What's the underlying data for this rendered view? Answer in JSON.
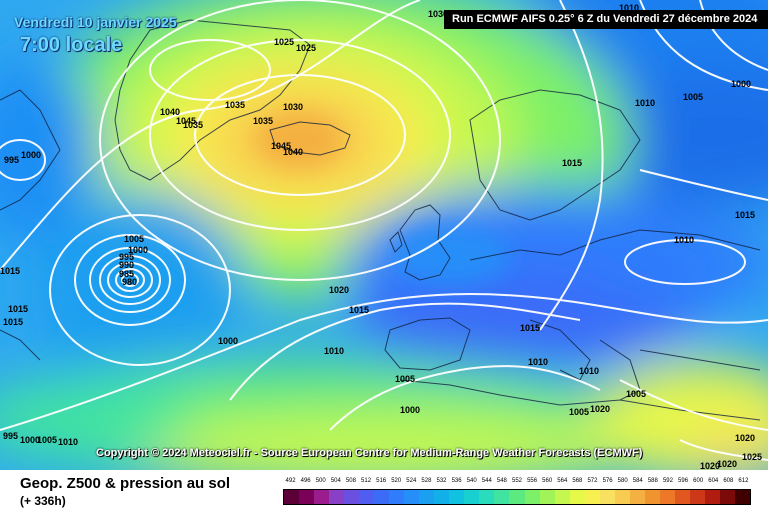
{
  "header": {
    "date": "Vendredi 10 janvier 2025",
    "local_time": "7:00 locale",
    "run_info": "Run ECMWF AIFS 0.25° 6 Z du Vendredi 27 décembre 2024"
  },
  "copyright": "Copyright © 2024 Meteociel.fr - Source European Centre for Medium-Range Weather Forecasts (ECMWF)",
  "footer": {
    "title": "Geop. Z500 & pression au sol",
    "forecast_hour": "(+ 336h)"
  },
  "legend": {
    "levels": [
      "492",
      "496",
      "500",
      "504",
      "508",
      "512",
      "516",
      "520",
      "524",
      "528",
      "532",
      "536",
      "540",
      "544",
      "548",
      "552",
      "556",
      "560",
      "564",
      "568",
      "572",
      "576",
      "580",
      "584",
      "588",
      "592",
      "596",
      "600",
      "604",
      "608",
      "612"
    ],
    "colors": [
      "#5c0038",
      "#7a0058",
      "#9b1c8c",
      "#8a3fc7",
      "#6a50e0",
      "#4f5ef0",
      "#3a6cf8",
      "#2f7dfc",
      "#258ef8",
      "#1b9ff0",
      "#12b0e8",
      "#10c2e0",
      "#18d0d0",
      "#28dcbc",
      "#40e4a0",
      "#5cea80",
      "#7cf068",
      "#a0f458",
      "#c4f850",
      "#e6f848",
      "#f8f050",
      "#f8e060",
      "#f8cc50",
      "#f4b040",
      "#f09430",
      "#ec7828",
      "#e05820",
      "#cc3818",
      "#b01c10",
      "#7c0a08",
      "#400000"
    ]
  },
  "isobars": [
    {
      "label": "1030",
      "kind": "high"
    },
    {
      "label": "1025",
      "kind": "high"
    },
    {
      "label": "1025",
      "kind": "high"
    },
    {
      "label": "1035",
      "kind": "high"
    },
    {
      "label": "1030",
      "kind": "high"
    },
    {
      "label": "1040",
      "kind": "high"
    },
    {
      "label": "1045",
      "kind": "high"
    },
    {
      "label": "1035",
      "kind": "high"
    },
    {
      "label": "1035",
      "kind": "high"
    },
    {
      "label": "1045",
      "kind": "high"
    },
    {
      "label": "1040",
      "kind": "high"
    },
    {
      "label": "995",
      "kind": "low"
    },
    {
      "label": "1000",
      "kind": "low"
    },
    {
      "label": "1005",
      "kind": "low"
    },
    {
      "label": "1000",
      "kind": "low"
    },
    {
      "label": "995",
      "kind": "low"
    },
    {
      "label": "990",
      "kind": "low"
    },
    {
      "label": "985",
      "kind": "low"
    },
    {
      "label": "980",
      "kind": "low"
    },
    {
      "label": "1015",
      "kind": "other"
    },
    {
      "label": "1015",
      "kind": "other"
    },
    {
      "label": "1015",
      "kind": "other"
    },
    {
      "label": "1000",
      "kind": "other"
    },
    {
      "label": "995",
      "kind": "other"
    },
    {
      "label": "1000",
      "kind": "other"
    },
    {
      "label": "1005",
      "kind": "other"
    },
    {
      "label": "1010",
      "kind": "other"
    },
    {
      "label": "1020",
      "kind": "other"
    },
    {
      "label": "1015",
      "kind": "other"
    },
    {
      "label": "1010",
      "kind": "other"
    },
    {
      "label": "1005",
      "kind": "other"
    },
    {
      "label": "1000",
      "kind": "other"
    },
    {
      "label": "1015",
      "kind": "other"
    },
    {
      "label": "1010",
      "kind": "other"
    },
    {
      "label": "1010",
      "kind": "other"
    },
    {
      "label": "1005",
      "kind": "other"
    },
    {
      "label": "1005",
      "kind": "other"
    },
    {
      "label": "1010",
      "kind": "other"
    },
    {
      "label": "1010",
      "kind": "other"
    },
    {
      "label": "1005",
      "kind": "other"
    },
    {
      "label": "1000",
      "kind": "other"
    },
    {
      "label": "1015",
      "kind": "other"
    },
    {
      "label": "1010",
      "kind": "other"
    },
    {
      "label": "1015",
      "kind": "other"
    },
    {
      "label": "1020",
      "kind": "other"
    },
    {
      "label": "1020",
      "kind": "other"
    },
    {
      "label": "1020",
      "kind": "other"
    },
    {
      "label": "1025",
      "kind": "other"
    },
    {
      "label": "1020",
      "kind": "other"
    }
  ]
}
